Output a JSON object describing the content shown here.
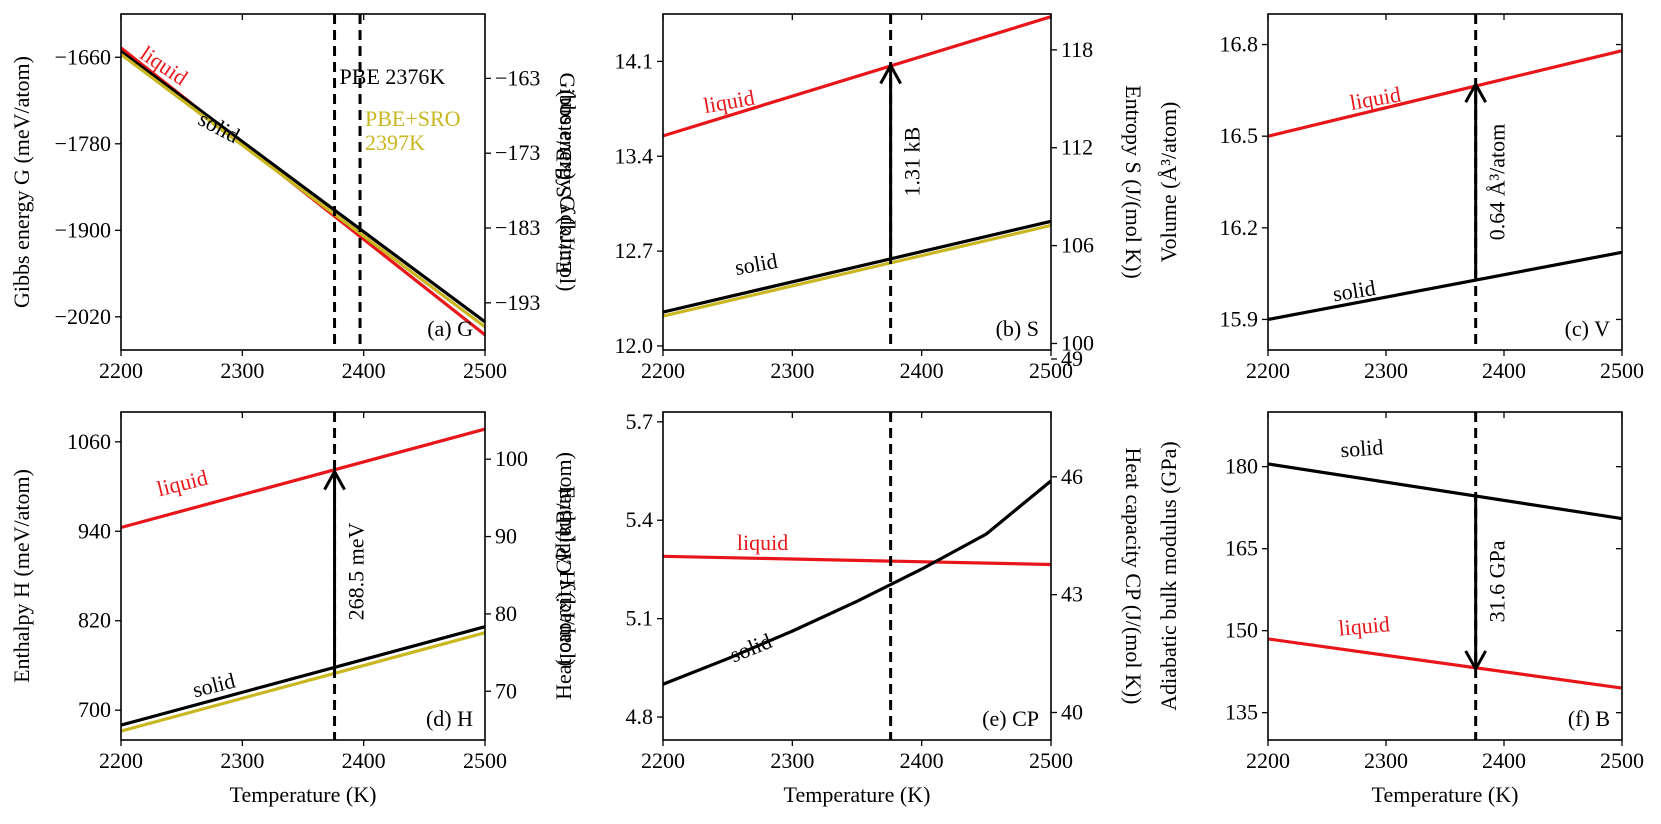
{
  "chart_data": [
    {
      "id": "a",
      "type": "line",
      "panel_label": "(a) G",
      "xlabel": "",
      "ylabel": "Gibbs energy G (meV/atom)",
      "ylabel_right": "Gibbs energy G (kJ/mol)",
      "xlim": [
        2200,
        2500
      ],
      "ylim": [
        -2066,
        -1600
      ],
      "xticks": [
        "2200",
        "2300",
        "2400",
        "2500"
      ],
      "yticks": [
        -2020,
        -1900,
        -1780,
        -1660
      ],
      "ytick_labels": [
        "−2020",
        "−1900",
        "−1780",
        "−1660"
      ],
      "right_ylim": [
        -199.3,
        -154.4
      ],
      "right_yticks": [
        -193,
        -183,
        -173,
        -163
      ],
      "right_ytick_labels": [
        "−193",
        "−183",
        "−173",
        "−163"
      ],
      "series": [
        {
          "name": "liquid",
          "color": "#e8161a",
          "x": [
            2200,
            2500
          ],
          "y": [
            -1647,
            -2045
          ]
        },
        {
          "name": "solid",
          "color": "#000000",
          "x": [
            2200,
            2500
          ],
          "y": [
            -1652,
            -2027
          ]
        },
        {
          "name": "",
          "color": "#c8b720",
          "x": [
            2200,
            2500
          ],
          "y": [
            -1656,
            -2034
          ]
        }
      ],
      "vlines": [
        {
          "x": 2376,
          "color": "#000000",
          "label": "PBE 2376K"
        },
        {
          "x": 2397,
          "color": "#c8b720",
          "label": "PBE+SRO 2397K",
          "label_lines": [
            "PBE+SRO",
            "2397K"
          ]
        }
      ],
      "labels": [
        {
          "text": "liquid",
          "color": "#e8161a",
          "x": 2232,
          "y": -1680,
          "angle": 34
        },
        {
          "text": "solid",
          "color": "#000000",
          "x": 2278,
          "y": -1766,
          "angle": 28
        }
      ]
    },
    {
      "id": "b",
      "type": "line",
      "panel_label": "(b) S",
      "xlabel": "",
      "ylabel": "Entropy S (kB/atom)",
      "ylabel_right": "Entropy S (J/(mol K))",
      "xlim": [
        2200,
        2500
      ],
      "ylim": [
        11.97,
        14.45
      ],
      "xticks": [
        "2200",
        "2300",
        "2400",
        "2500"
      ],
      "yticks": [
        12.0,
        12.7,
        13.4,
        14.1
      ],
      "ytick_labels": [
        "12.0",
        "12.7",
        "13.4",
        "14.1"
      ],
      "right_ylim": [
        99.6,
        120.2
      ],
      "right_yticks": [
        100,
        106,
        112,
        118
      ],
      "right_ytick_labels": [
        "100",
        "106",
        "112",
        "118"
      ],
      "series": [
        {
          "name": "liquid",
          "color": "#e8161a",
          "x": [
            2200,
            2500
          ],
          "y": [
            13.55,
            14.43
          ]
        },
        {
          "name": "solid",
          "color": "#000000",
          "x": [
            2200,
            2500
          ],
          "y": [
            12.25,
            12.92
          ]
        },
        {
          "name": "",
          "color": "#c8b720",
          "x": [
            2200,
            2500
          ],
          "y": [
            12.22,
            12.89
          ]
        }
      ],
      "vlines": [
        {
          "x": 2376,
          "color": "#000000"
        }
      ],
      "arrow": {
        "x": 2376,
        "y_from": 12.65,
        "y_to": 14.07,
        "label": "1.31 kB"
      },
      "labels": [
        {
          "text": "liquid",
          "color": "#e8161a",
          "x": 2252,
          "y": 13.75,
          "angle": -10
        },
        {
          "text": "solid",
          "color": "#000000",
          "x": 2273,
          "y": 12.55,
          "angle": -10
        }
      ]
    },
    {
      "id": "c",
      "type": "line",
      "panel_label": "(c) V",
      "xlabel": "",
      "ylabel": "Volume (Å³/atom)",
      "xlim": [
        2200,
        2500
      ],
      "ylim": [
        15.8,
        16.9
      ],
      "xticks": [
        "2200",
        "2300",
        "2400",
        "2500"
      ],
      "yticks": [
        15.9,
        16.2,
        16.5,
        16.8
      ],
      "ytick_labels": [
        "15.9",
        "16.2",
        "16.5",
        "16.8"
      ],
      "series": [
        {
          "name": "liquid",
          "color": "#e8161a",
          "x": [
            2200,
            2500
          ],
          "y": [
            16.5,
            16.78
          ]
        },
        {
          "name": "solid",
          "color": "#000000",
          "x": [
            2200,
            2500
          ],
          "y": [
            15.9,
            16.12
          ]
        }
      ],
      "vlines": [
        {
          "x": 2376,
          "color": "#000000"
        }
      ],
      "arrow": {
        "x": 2376,
        "y_from": 16.03,
        "y_to": 16.67,
        "label": "0.64 Å³/atom"
      },
      "labels": [
        {
          "text": "liquid",
          "color": "#e8161a",
          "x": 2292,
          "y": 16.6,
          "angle": -10
        },
        {
          "text": "solid",
          "color": "#000000",
          "x": 2274,
          "y": 15.97,
          "angle": -9
        }
      ]
    },
    {
      "id": "d",
      "type": "line",
      "panel_label": "(d) H",
      "xlabel": "Temperature (K)",
      "ylabel": "Enthalpy H (meV/atom)",
      "ylabel_right": "Enthalpy H (kJ/mol)",
      "xlim": [
        2200,
        2500
      ],
      "ylim": [
        660,
        1100
      ],
      "xticks": [
        "2200",
        "2300",
        "2400",
        "2500"
      ],
      "yticks": [
        700,
        820,
        940,
        1060
      ],
      "ytick_labels": [
        "700",
        "820",
        "940",
        "1060"
      ],
      "right_ylim": [
        63.7,
        106.1
      ],
      "right_yticks": [
        70,
        80,
        90,
        100
      ],
      "right_ytick_labels": [
        "70",
        "80",
        "90",
        "100"
      ],
      "series": [
        {
          "name": "liquid",
          "color": "#e8161a",
          "x": [
            2200,
            2500
          ],
          "y": [
            945,
            1077
          ]
        },
        {
          "name": "solid",
          "color": "#000000",
          "x": [
            2200,
            2500
          ],
          "y": [
            680,
            812
          ]
        },
        {
          "name": "",
          "color": "#c8b720",
          "x": [
            2200,
            2500
          ],
          "y": [
            672,
            804
          ]
        }
      ],
      "vlines": [
        {
          "x": 2376,
          "color": "#000000"
        }
      ],
      "arrow": {
        "x": 2376,
        "y_from": 752,
        "y_to": 1020,
        "label": "268.5 meV"
      },
      "labels": [
        {
          "text": "liquid",
          "color": "#e8161a",
          "x": 2252,
          "y": 995,
          "angle": -14
        },
        {
          "text": "solid",
          "color": "#000000",
          "x": 2278,
          "y": 724,
          "angle": -14
        }
      ]
    },
    {
      "id": "e",
      "type": "line",
      "panel_label": "(e) CP",
      "xlabel": "Temperature (K)",
      "ylabel": "Heat capacity CP (kB/atom)",
      "ylabel_right": "Heat capacity CP (J/(mol K))",
      "xlim": [
        2200,
        2500
      ],
      "ylim": [
        4.73,
        5.73
      ],
      "xticks": [
        "2200",
        "2300",
        "2400",
        "2500"
      ],
      "yticks": [
        4.8,
        5.1,
        5.4,
        5.7
      ],
      "ytick_labels": [
        "4.8",
        "5.1",
        "5.4",
        "5.7"
      ],
      "right_ylim": [
        39.3,
        47.65
      ],
      "right_yticks": [
        40,
        43,
        46,
        49
      ],
      "right_ytick_labels": [
        "40",
        "43",
        "46",
        "49"
      ],
      "series": [
        {
          "name": "liquid",
          "color": "#e8161a",
          "x": [
            2200,
            2500
          ],
          "y": [
            5.29,
            5.265
          ]
        },
        {
          "name": "solid",
          "color": "#000000",
          "x": [
            2200,
            2250,
            2300,
            2350,
            2400,
            2450,
            2500
          ],
          "y": [
            4.9,
            4.978,
            5.062,
            5.153,
            5.251,
            5.358,
            5.52
          ]
        }
      ],
      "vlines": [
        {
          "x": 2376,
          "color": "#000000"
        }
      ],
      "labels": [
        {
          "text": "liquid",
          "color": "#e8161a",
          "x": 2277,
          "y": 5.31,
          "angle": 0
        },
        {
          "text": "solid",
          "color": "#000000",
          "x": 2270,
          "y": 4.99,
          "angle": -22
        }
      ]
    },
    {
      "id": "f",
      "type": "line",
      "panel_label": "(f) B",
      "xlabel": "Temperature (K)",
      "ylabel": "Adiabatic bulk modulus (GPa)",
      "xlim": [
        2200,
        2500
      ],
      "ylim": [
        130,
        190
      ],
      "xticks": [
        "2200",
        "2300",
        "2400",
        "2500"
      ],
      "yticks": [
        135,
        150,
        165,
        180
      ],
      "ytick_labels": [
        "135",
        "150",
        "165",
        "180"
      ],
      "series": [
        {
          "name": "solid",
          "color": "#000000",
          "x": [
            2200,
            2500
          ],
          "y": [
            180.5,
            170.5
          ]
        },
        {
          "name": "liquid",
          "color": "#e8161a",
          "x": [
            2200,
            2500
          ],
          "y": [
            148.5,
            139.5
          ]
        }
      ],
      "vlines": [
        {
          "x": 2376,
          "color": "#000000"
        }
      ],
      "arrow": {
        "x": 2376,
        "y_from": 175,
        "y_to": 143,
        "label": "31.6 GPa"
      },
      "labels": [
        {
          "text": "solid",
          "color": "#000000",
          "x": 2280,
          "y": 182,
          "angle": -4
        },
        {
          "text": "liquid",
          "color": "#e8161a",
          "x": 2282,
          "y": 149.5,
          "angle": -5
        }
      ]
    }
  ]
}
